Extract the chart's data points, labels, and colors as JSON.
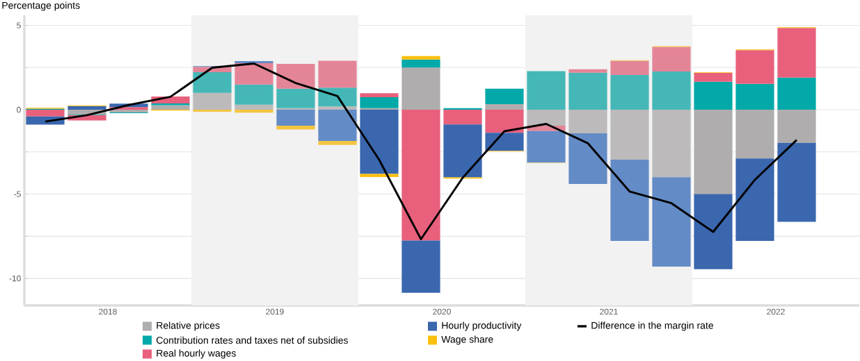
{
  "chart_data": {
    "type": "bar",
    "stacked": true,
    "ylabel": "Percentage points",
    "x": [
      2017.625,
      2017.875,
      2018.125,
      2018.375,
      2018.625,
      2018.875,
      2019.125,
      2019.375,
      2019.625,
      2019.875,
      2020.125,
      2020.375,
      2020.625,
      2020.875,
      2021.125,
      2021.375,
      2021.625,
      2021.875,
      2022.125
    ],
    "xlim": [
      2017.5,
      2022.5
    ],
    "xticks": [
      2018,
      2019,
      2020,
      2021,
      2022
    ],
    "ylim": [
      -11.6,
      5.6
    ],
    "yticks": [
      5,
      {
        "value": 2.5,
        "label": null
      },
      0,
      {
        "value": -2.5,
        "label": null
      },
      -5,
      {
        "value": -7.5,
        "label": null
      },
      -10
    ],
    "grid": "y",
    "legend": "bottom",
    "bands": [
      {
        "axis": "x",
        "from": 2018.5,
        "to": 2019.5,
        "color": "#f2f2f2"
      },
      {
        "axis": "x",
        "from": 2020.5,
        "to": 2021.5,
        "color": "#f2f2f2"
      }
    ],
    "series": [
      {
        "name": "Relative prices",
        "color": "#afadad",
        "colors": [
          "#afadad",
          "#afadad",
          "#afadad",
          "#afadad",
          "#bcbaba",
          "#bcbaba",
          "#bcbaba",
          "#bcbaba",
          "#afadad",
          "#afadad",
          "#afadad",
          "#afadad",
          "#bcbaba",
          "#bcbaba",
          "#bcbaba",
          "#bcbaba",
          "#afadad",
          "#afadad",
          "#afadad"
        ],
        "values": [
          0,
          -0.3,
          -0.16,
          0.27,
          1.0,
          0.3,
          0.1,
          0.2,
          0.1,
          2.5,
          0,
          0.33,
          -0.94,
          -1.4,
          -2.96,
          -4.0,
          -5.0,
          -2.89,
          -1.96
        ]
      },
      {
        "name": "Contribution rates and taxes net of subsidies",
        "color": "#03a9a9",
        "colors": [
          "#03a9a9",
          "#03a9a9",
          "#03a9a9",
          "#03a9a9",
          "#45b7b7",
          "#45b7b7",
          "#45b7b7",
          "#45b7b7",
          "#03a9a9",
          "#03a9a9",
          "#03a9a9",
          "#03a9a9",
          "#45b7b7",
          "#45b7b7",
          "#45b7b7",
          "#45b7b7",
          "#03a9a9",
          "#03a9a9",
          "#03a9a9"
        ],
        "values": [
          0.07,
          -0.03,
          -0.04,
          0.1,
          1.23,
          1.19,
          1.15,
          1.11,
          0.64,
          0.48,
          0.1,
          0.92,
          2.29,
          2.19,
          2.06,
          2.27,
          1.66,
          1.54,
          1.91
        ]
      },
      {
        "name": "Real hourly wages",
        "color": "#e8607c",
        "colors": [
          "#e8607c",
          "#e8607c",
          "#e8607c",
          "#e8607c",
          "#e48597",
          "#e48597",
          "#e48597",
          "#e48597",
          "#e8607c",
          "#e8607c",
          "#e8607c",
          "#e8607c",
          "#e48597",
          "#e48597",
          "#e48597",
          "#e48597",
          "#e8607c",
          "#e8607c",
          "#e8607c"
        ],
        "values": [
          -0.4,
          -0.3,
          0.16,
          0.42,
          0.31,
          1.27,
          1.47,
          1.59,
          0.24,
          -7.75,
          -0.87,
          -1.37,
          -0.32,
          0.21,
          0.84,
          1.46,
          0.52,
          1.99,
          2.94
        ]
      },
      {
        "name": "Hourly productivity",
        "color": "#3a67ae",
        "colors": [
          "#3a67ae",
          "#3a67ae",
          "#3a67ae",
          "#3a67ae",
          "#638bc6",
          "#638bc6",
          "#638bc6",
          "#638bc6",
          "#3a67ae",
          "#3a67ae",
          "#3a67ae",
          "#3a67ae",
          "#638bc6",
          "#638bc6",
          "#638bc6",
          "#638bc6",
          "#3a67ae",
          "#3a67ae",
          "#3a67ae"
        ],
        "values": [
          -0.48,
          0.22,
          0.2,
          0,
          0.05,
          0.12,
          -0.94,
          -1.85,
          -3.8,
          -3.1,
          -3.14,
          -1.07,
          -1.87,
          -3.0,
          -4.81,
          -5.3,
          -4.45,
          -4.88,
          -4.68
        ]
      },
      {
        "name": "Wage share",
        "color": "#fbbf0e",
        "colors": [
          "#fbbf0e",
          "#fbbf0e",
          "#fbbf0e",
          "#fbbf0e",
          "#f4c542",
          "#f4c542",
          "#f4c542",
          "#f4c542",
          "#fbbf0e",
          "#fbbf0e",
          "#fbbf0e",
          "#fbbf0e",
          "#f4c542",
          "#f4c542",
          "#f4c542",
          "#f4c542",
          "#fbbf0e",
          "#fbbf0e",
          "#fbbf0e"
        ],
        "values": [
          0.05,
          0.04,
          0,
          -0.05,
          -0.12,
          -0.17,
          -0.23,
          -0.24,
          -0.19,
          0.2,
          -0.07,
          -0.03,
          -0.03,
          0,
          0.04,
          0.04,
          0.04,
          0.04,
          0.04
        ]
      },
      {
        "name": "Difference in the margin rate",
        "type": "line",
        "color": "#000000",
        "values": [
          -0.7,
          -0.32,
          0.28,
          0.77,
          2.49,
          2.74,
          1.58,
          0.81,
          -2.97,
          -7.67,
          -4.03,
          -1.27,
          -0.84,
          -1.99,
          -4.85,
          -5.54,
          -7.24,
          -4.15,
          -1.79
        ]
      }
    ]
  }
}
